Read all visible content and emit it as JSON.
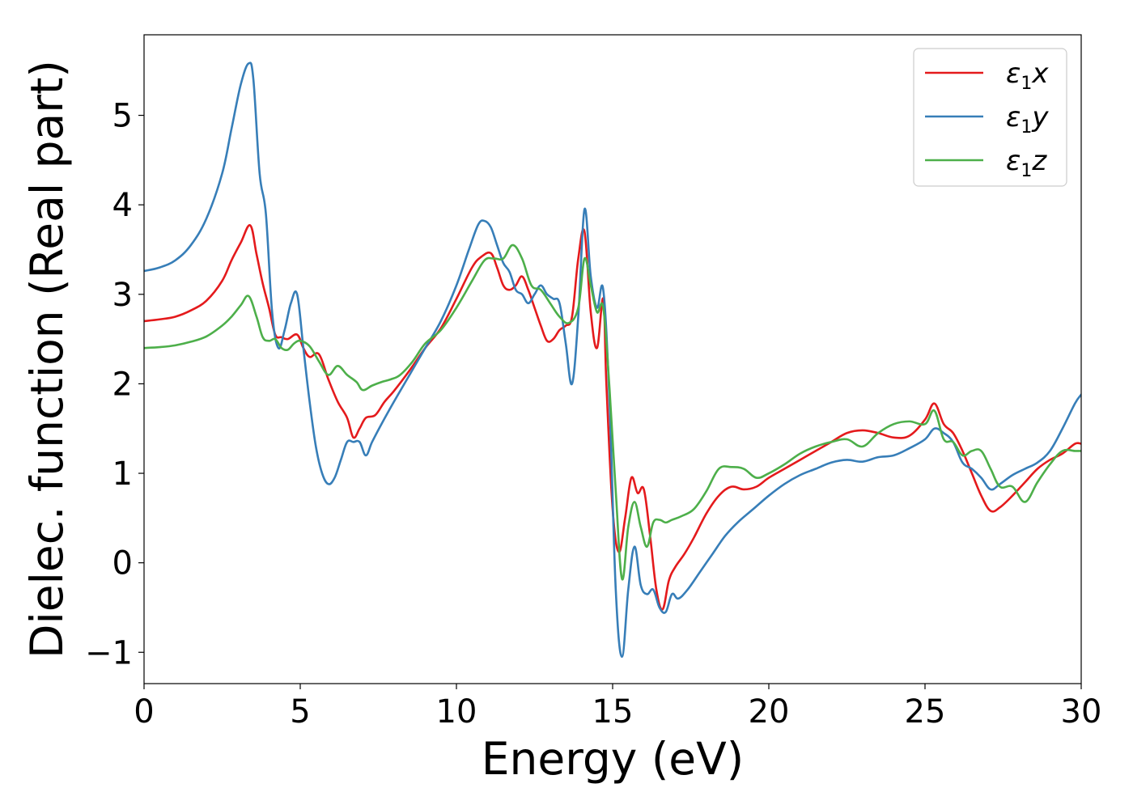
{
  "chart_data": {
    "type": "line",
    "title": "",
    "xlabel": "Energy (eV)",
    "ylabel": "Dielec. function (Real part)",
    "xlim": [
      0,
      30
    ],
    "ylim": [
      -1.35,
      5.9
    ],
    "xticks": [
      0,
      5,
      10,
      15,
      20,
      25,
      30
    ],
    "xtick_labels": [
      "0",
      "5",
      "10",
      "15",
      "20",
      "25",
      "30"
    ],
    "yticks": [
      -1,
      0,
      1,
      2,
      3,
      4,
      5
    ],
    "ytick_labels": [
      "−1",
      "0",
      "1",
      "2",
      "3",
      "4",
      "5"
    ],
    "grid": false,
    "legend_position": "top-right",
    "series": [
      {
        "name": "ε₁x",
        "legend_base": "ε",
        "legend_sub": "1",
        "legend_var": "x",
        "color": "#e41a1c",
        "x": [
          0,
          0.5,
          1,
          1.5,
          2,
          2.5,
          2.8,
          3.1,
          3.4,
          3.6,
          3.8,
          4.0,
          4.2,
          4.4,
          4.6,
          4.9,
          5.1,
          5.3,
          5.6,
          5.9,
          6.2,
          6.5,
          6.7,
          6.9,
          7.1,
          7.4,
          7.7,
          8.0,
          8.5,
          9.0,
          9.5,
          10.0,
          10.5,
          10.8,
          11.1,
          11.3,
          11.5,
          11.7,
          11.9,
          12.1,
          12.3,
          12.5,
          12.7,
          12.9,
          13.1,
          13.3,
          13.5,
          13.7,
          13.9,
          14.1,
          14.3,
          14.5,
          14.7,
          14.8,
          15.0,
          15.2,
          15.4,
          15.6,
          15.8,
          16.0,
          16.2,
          16.4,
          16.6,
          16.8,
          17.0,
          17.3,
          17.6,
          18.0,
          18.4,
          18.8,
          19.2,
          19.6,
          20.0,
          20.5,
          21.0,
          21.5,
          22.0,
          22.5,
          23.0,
          23.5,
          24.0,
          24.5,
          25.0,
          25.3,
          25.6,
          25.9,
          26.2,
          26.5,
          26.8,
          27.1,
          27.4,
          27.8,
          28.2,
          28.6,
          29.0,
          29.4,
          29.8,
          30.0
        ],
        "y": [
          2.7,
          2.72,
          2.75,
          2.82,
          2.93,
          3.15,
          3.38,
          3.58,
          3.77,
          3.45,
          3.12,
          2.85,
          2.55,
          2.52,
          2.5,
          2.55,
          2.4,
          2.3,
          2.33,
          2.05,
          1.8,
          1.62,
          1.4,
          1.5,
          1.62,
          1.65,
          1.8,
          1.92,
          2.15,
          2.4,
          2.62,
          2.95,
          3.3,
          3.42,
          3.46,
          3.3,
          3.1,
          3.05,
          3.1,
          3.2,
          3.05,
          2.85,
          2.65,
          2.48,
          2.5,
          2.6,
          2.65,
          2.75,
          3.4,
          3.7,
          2.8,
          2.4,
          2.95,
          2.0,
          0.6,
          0.12,
          0.5,
          0.95,
          0.78,
          0.82,
          0.3,
          -0.3,
          -0.52,
          -0.2,
          -0.05,
          0.1,
          0.28,
          0.55,
          0.75,
          0.85,
          0.82,
          0.85,
          0.95,
          1.05,
          1.15,
          1.25,
          1.35,
          1.45,
          1.48,
          1.45,
          1.4,
          1.42,
          1.6,
          1.78,
          1.55,
          1.45,
          1.25,
          1.0,
          0.75,
          0.58,
          0.62,
          0.75,
          0.9,
          1.05,
          1.15,
          1.22,
          1.33,
          1.33
        ]
      },
      {
        "name": "ε₁y",
        "legend_base": "ε",
        "legend_sub": "1",
        "legend_var": "y",
        "color": "#377eb8",
        "x": [
          0,
          0.5,
          1,
          1.5,
          2,
          2.5,
          2.8,
          3.1,
          3.35,
          3.5,
          3.7,
          3.9,
          4.1,
          4.3,
          4.5,
          4.7,
          4.9,
          5.1,
          5.3,
          5.5,
          5.7,
          5.9,
          6.1,
          6.3,
          6.5,
          6.7,
          6.9,
          7.1,
          7.3,
          7.6,
          8.0,
          8.5,
          9.0,
          9.5,
          10.0,
          10.4,
          10.7,
          10.9,
          11.1,
          11.3,
          11.5,
          11.7,
          11.9,
          12.1,
          12.3,
          12.5,
          12.7,
          12.9,
          13.1,
          13.3,
          13.5,
          13.7,
          13.9,
          14.1,
          14.3,
          14.5,
          14.7,
          14.9,
          15.1,
          15.3,
          15.5,
          15.7,
          15.9,
          16.1,
          16.3,
          16.5,
          16.7,
          16.9,
          17.1,
          17.4,
          17.8,
          18.2,
          18.6,
          19.0,
          19.5,
          20.0,
          20.5,
          21.0,
          21.5,
          22.0,
          22.5,
          23.0,
          23.5,
          24.0,
          24.5,
          25.0,
          25.3,
          25.6,
          25.9,
          26.2,
          26.5,
          26.8,
          27.1,
          27.4,
          27.8,
          28.2,
          28.6,
          29.0,
          29.4,
          29.8,
          30.0
        ],
        "y": [
          3.26,
          3.3,
          3.38,
          3.55,
          3.85,
          4.35,
          4.85,
          5.35,
          5.58,
          5.4,
          4.35,
          3.9,
          2.8,
          2.4,
          2.6,
          2.9,
          3.0,
          2.4,
          1.8,
          1.3,
          1.0,
          0.88,
          0.95,
          1.15,
          1.35,
          1.35,
          1.35,
          1.2,
          1.35,
          1.55,
          1.8,
          2.1,
          2.4,
          2.7,
          3.1,
          3.5,
          3.78,
          3.82,
          3.75,
          3.55,
          3.35,
          3.25,
          3.05,
          3.0,
          2.9,
          3.0,
          3.1,
          3.0,
          2.95,
          2.9,
          2.45,
          2.0,
          2.75,
          3.95,
          3.2,
          2.85,
          3.05,
          1.8,
          -0.3,
          -1.05,
          -0.3,
          0.18,
          -0.25,
          -0.35,
          -0.3,
          -0.5,
          -0.55,
          -0.35,
          -0.4,
          -0.3,
          -0.1,
          0.1,
          0.3,
          0.45,
          0.6,
          0.75,
          0.88,
          0.98,
          1.05,
          1.12,
          1.15,
          1.13,
          1.18,
          1.2,
          1.28,
          1.38,
          1.5,
          1.45,
          1.35,
          1.12,
          1.05,
          0.95,
          0.82,
          0.88,
          0.98,
          1.05,
          1.12,
          1.25,
          1.5,
          1.78,
          1.88
        ]
      },
      {
        "name": "ε₁z",
        "legend_base": "ε",
        "legend_sub": "1",
        "legend_var": "z",
        "color": "#4daf4a",
        "x": [
          0,
          0.5,
          1,
          1.5,
          2,
          2.5,
          2.8,
          3.1,
          3.35,
          3.6,
          3.8,
          4.0,
          4.2,
          4.4,
          4.6,
          4.8,
          5.0,
          5.3,
          5.6,
          5.9,
          6.2,
          6.5,
          6.8,
          7.0,
          7.3,
          7.6,
          7.9,
          8.2,
          8.6,
          9.0,
          9.5,
          10.0,
          10.5,
          10.9,
          11.2,
          11.5,
          11.8,
          12.1,
          12.4,
          12.7,
          13.0,
          13.3,
          13.6,
          13.9,
          14.1,
          14.3,
          14.5,
          14.7,
          14.9,
          15.1,
          15.3,
          15.5,
          15.7,
          15.9,
          16.1,
          16.3,
          16.5,
          16.7,
          16.9,
          17.2,
          17.6,
          18.0,
          18.4,
          18.8,
          19.2,
          19.6,
          20.0,
          20.5,
          21.0,
          21.5,
          22.0,
          22.5,
          23.0,
          23.5,
          24.0,
          24.5,
          25.0,
          25.3,
          25.6,
          25.9,
          26.2,
          26.5,
          26.8,
          27.1,
          27.4,
          27.8,
          28.2,
          28.6,
          29.0,
          29.4,
          29.8,
          30.0
        ],
        "y": [
          2.4,
          2.41,
          2.43,
          2.47,
          2.53,
          2.65,
          2.75,
          2.88,
          2.98,
          2.75,
          2.52,
          2.48,
          2.5,
          2.4,
          2.38,
          2.45,
          2.48,
          2.42,
          2.25,
          2.1,
          2.2,
          2.1,
          2.02,
          1.93,
          1.98,
          2.02,
          2.05,
          2.1,
          2.25,
          2.45,
          2.6,
          2.85,
          3.15,
          3.38,
          3.4,
          3.4,
          3.55,
          3.4,
          3.1,
          3.05,
          2.9,
          2.75,
          2.68,
          2.85,
          3.4,
          3.1,
          2.8,
          2.85,
          1.95,
          0.8,
          -0.18,
          0.4,
          0.68,
          0.4,
          0.18,
          0.45,
          0.48,
          0.45,
          0.48,
          0.52,
          0.6,
          0.8,
          1.05,
          1.07,
          1.05,
          0.95,
          1.0,
          1.1,
          1.22,
          1.3,
          1.35,
          1.38,
          1.3,
          1.45,
          1.55,
          1.58,
          1.55,
          1.7,
          1.38,
          1.35,
          1.2,
          1.25,
          1.25,
          1.05,
          0.85,
          0.85,
          0.68,
          0.9,
          1.1,
          1.25,
          1.25,
          1.25
        ]
      }
    ]
  }
}
